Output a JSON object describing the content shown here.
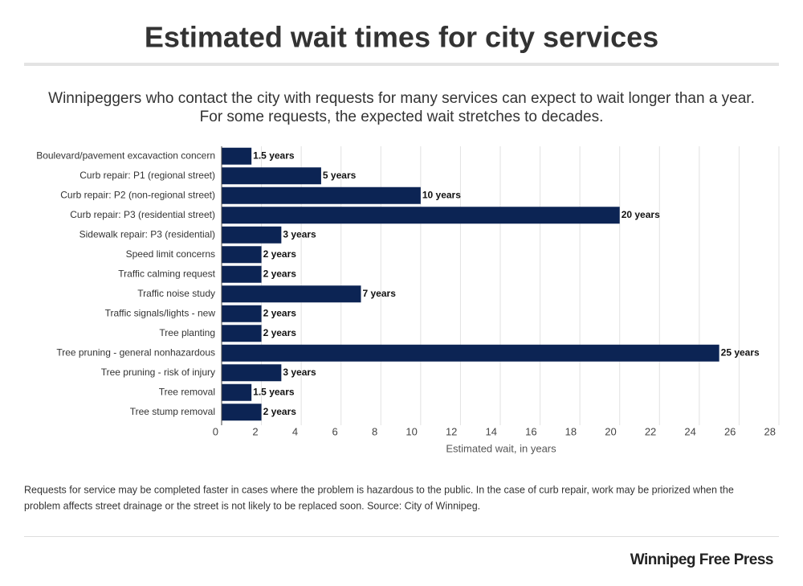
{
  "chart_data": {
    "type": "bar",
    "orientation": "horizontal",
    "title": "Estimated wait times for city services",
    "subtitle": [
      "Winnipeggers who contact the city with requests for many services can expect to wait longer than a year.",
      "For some requests, the expected wait stretches to decades."
    ],
    "categories": [
      "Boulevard/pavement excavaction concern",
      "Curb repair: P1 (regional street)",
      "Curb repair: P2 (non-regional street)",
      "Curb repair: P3 (residential street)",
      "Sidewalk repair: P3 (residential)",
      "Speed limit concerns",
      "Traffic calming request",
      "Traffic noise study",
      "Traffic signals/lights - new",
      "Tree planting",
      "Tree pruning - general nonhazardous",
      "Tree pruning - risk of injury",
      "Tree removal",
      "Tree stump removal"
    ],
    "values": [
      1.5,
      5,
      10,
      20,
      3,
      2,
      2,
      7,
      2,
      2,
      25,
      3,
      1.5,
      2
    ],
    "value_labels": [
      "1.5 years",
      "5 years",
      "10 years",
      "20 years",
      "3 years",
      "2 years",
      "2 years",
      "7 years",
      "2 years",
      "2 years",
      "25 years",
      "3 years",
      "1.5 years",
      "2 years"
    ],
    "color": "#0c2454",
    "xlim": [
      0,
      28
    ],
    "xticks": [
      0,
      2,
      4,
      6,
      8,
      10,
      12,
      14,
      16,
      18,
      20,
      22,
      24,
      26,
      28
    ],
    "x_label": "Estimated wait, in years",
    "grid": true,
    "note": [
      "Requests for service may be completed faster in cases where the problem is hazardous to the public. In the case of curb repair, work may be priorized when the",
      "problem affects street drainage or the street is not likely to be replaced soon.  Source: City of Winnipeg."
    ],
    "brand": "Winnipeg Free Press"
  }
}
